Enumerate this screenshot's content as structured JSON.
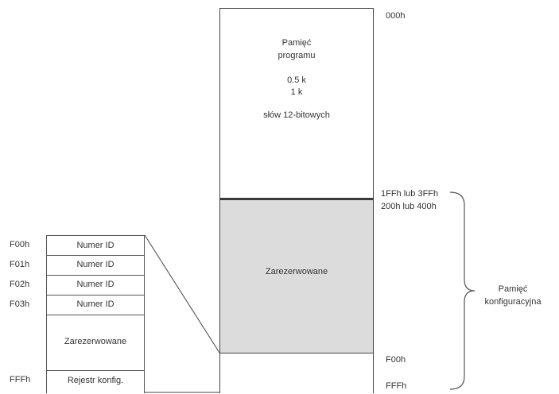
{
  "program_memory": {
    "title_line1": "Pamięć",
    "title_line2": "programu",
    "size_line1": "0.5 k",
    "size_line2": "1 k",
    "word_size": "słów 12-bitowych"
  },
  "addresses": {
    "start": "000h",
    "program_end": "1FFh lub 3FFh",
    "reserved_start": "200h lub 400h",
    "config_start": "F00h",
    "end": "FFFh"
  },
  "reserved_main_label": "Zarezerwowane",
  "config_memory": {
    "label_line1": "Pamięć",
    "label_line2": "konfiguracyjna"
  },
  "config_detail": {
    "rows": [
      {
        "address": "F00h",
        "label": "Numer ID"
      },
      {
        "address": "F01h",
        "label": "Numer ID"
      },
      {
        "address": "F02h",
        "label": "Numer ID"
      },
      {
        "address": "F03h",
        "label": "Numer ID"
      }
    ],
    "reserved_label": "Zarezerwowane",
    "last_address": "FFFh",
    "last_label": "Rejestr konfig."
  },
  "colors": {
    "reserved_fill": "#dcdcdc",
    "line": "#444444"
  }
}
